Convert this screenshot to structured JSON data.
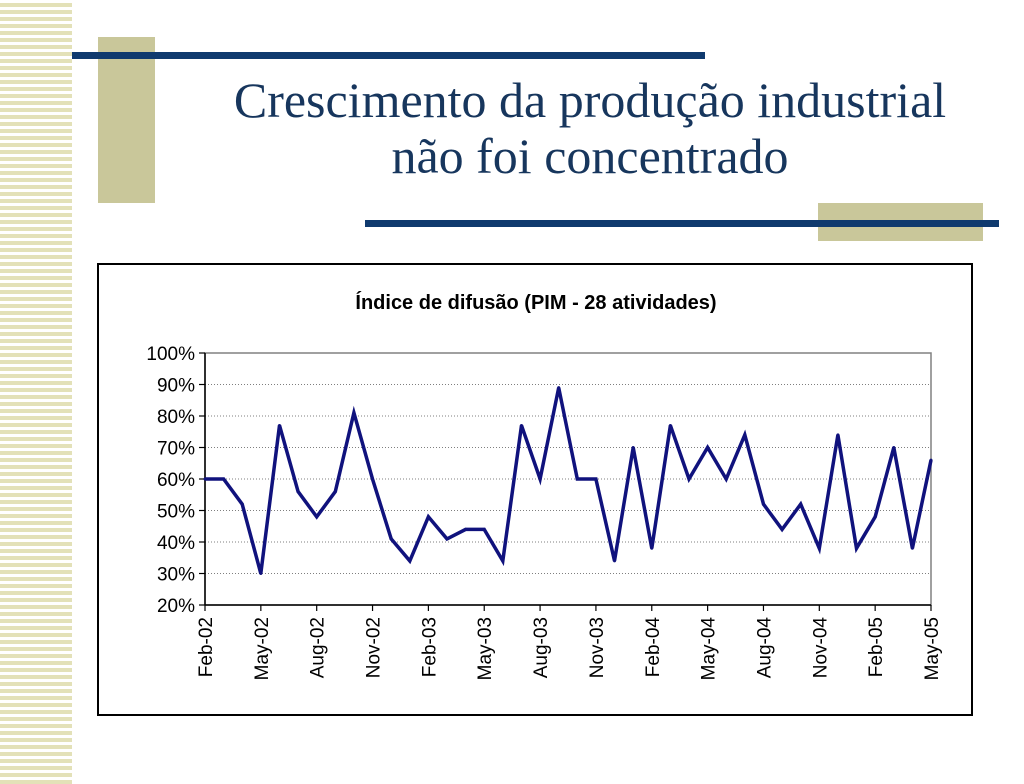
{
  "slide": {
    "title_line1": "Crescimento da produção industrial",
    "title_line2": "não foi concentrado",
    "colors": {
      "navy": "#0f3a6e",
      "khaki": "#c9c79a",
      "title": "#17365d",
      "series": "#10127d"
    }
  },
  "chart_data": {
    "type": "line",
    "title": "Índice de difusão (PIM - 28 atividades)",
    "xlabel": "",
    "ylabel": "",
    "ylim": [
      0.2,
      1.0
    ],
    "yticks": [
      0.2,
      0.3,
      0.4,
      0.5,
      0.6,
      0.7,
      0.8,
      0.9,
      1.0
    ],
    "ytick_labels": [
      "20%",
      "30%",
      "40%",
      "50%",
      "60%",
      "70%",
      "80%",
      "90%",
      "100%"
    ],
    "x": [
      "Feb-02",
      "Mar-02",
      "Apr-02",
      "May-02",
      "Jun-02",
      "Jul-02",
      "Aug-02",
      "Sep-02",
      "Oct-02",
      "Nov-02",
      "Dec-02",
      "Jan-03",
      "Feb-03",
      "Mar-03",
      "Apr-03",
      "May-03",
      "Jun-03",
      "Jul-03",
      "Aug-03",
      "Sep-03",
      "Oct-03",
      "Nov-03",
      "Dec-03",
      "Jan-04",
      "Feb-04",
      "Mar-04",
      "Apr-04",
      "May-04",
      "Jun-04",
      "Jul-04",
      "Aug-04",
      "Sep-04",
      "Oct-04",
      "Nov-04",
      "Dec-04",
      "Jan-05",
      "Feb-05",
      "Mar-05",
      "Apr-05",
      "May-05"
    ],
    "xtick_labels": [
      "Feb-02",
      "May-02",
      "Aug-02",
      "Nov-02",
      "Feb-03",
      "May-03",
      "Aug-03",
      "Nov-03",
      "Feb-04",
      "May-04",
      "Aug-04",
      "Nov-04",
      "Feb-05",
      "May-05"
    ],
    "values": [
      0.6,
      0.6,
      0.52,
      0.3,
      0.77,
      0.56,
      0.48,
      0.56,
      0.81,
      0.6,
      0.41,
      0.34,
      0.48,
      0.41,
      0.44,
      0.44,
      0.34,
      0.77,
      0.6,
      0.89,
      0.6,
      0.6,
      0.34,
      0.7,
      0.38,
      0.77,
      0.6,
      0.7,
      0.6,
      0.74,
      0.52,
      0.44,
      0.52,
      0.38,
      0.74,
      0.38,
      0.48,
      0.7,
      0.38,
      0.66
    ],
    "grid": true,
    "legend": "none",
    "line_color": "#10127d"
  }
}
